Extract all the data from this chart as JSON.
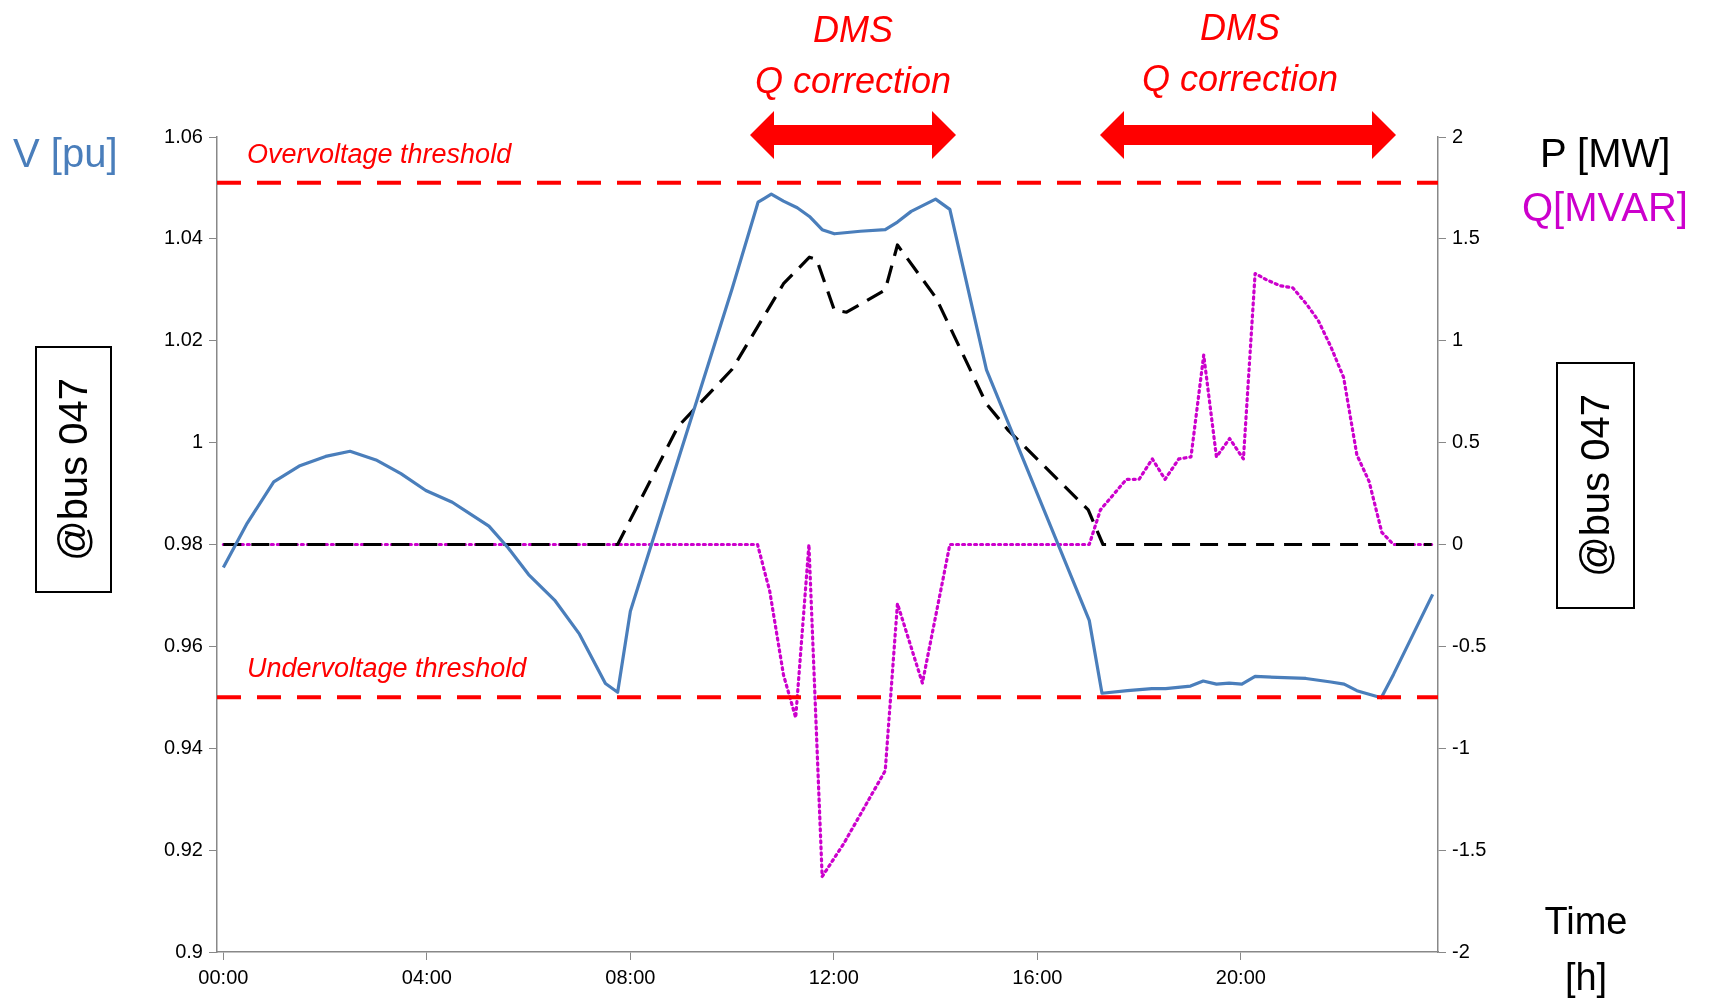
{
  "chart_data": {
    "type": "line",
    "xlabel": "Time\n[h]",
    "legend": false,
    "marker": "none",
    "xlim": [
      -0.125,
      23.875
    ],
    "xticks": [
      {
        "value": 0,
        "label": "00:00"
      },
      {
        "value": 4,
        "label": "04:00"
      },
      {
        "value": 8,
        "label": "08:00"
      },
      {
        "value": 12,
        "label": "12:00"
      },
      {
        "value": 16,
        "label": "16:00"
      },
      {
        "value": 20,
        "label": "20:00"
      }
    ],
    "ylim": [
      0.9,
      1.06
    ],
    "yticks": [
      0.9,
      0.92,
      0.94,
      0.96,
      0.98,
      1,
      1.02,
      1.04,
      1.06
    ],
    "y2lim": [
      -2,
      2
    ],
    "y2ticks": [
      -2,
      -1.5,
      -1,
      -0.5,
      0,
      0.5,
      1,
      1.5,
      2
    ],
    "series": [
      {
        "name": "V [pu]",
        "color": "#4a7ebb",
        "line_style": "solid",
        "x": [
          0,
          0.47,
          0.99,
          1.49,
          2.01,
          2.49,
          3.0,
          3.49,
          3.98,
          4.5,
          5.22,
          5.6,
          6.0,
          6.51,
          7.0,
          7.51,
          7.75,
          8.0,
          10.0,
          10.51,
          10.77,
          11.01,
          11.28,
          11.52,
          11.77,
          12.01,
          12.52,
          13.01,
          13.25,
          13.52,
          14.0,
          14.28,
          15.0,
          17.02,
          17.27,
          17.77,
          18.25,
          18.52,
          19.01,
          19.26,
          19.52,
          19.77,
          20.02,
          20.28,
          21.28,
          21.77,
          22.03,
          22.28,
          22.76,
          23.0,
          23.77
        ],
        "values": [
          0.9755,
          0.9842,
          0.9923,
          0.9954,
          0.9973,
          0.9983,
          0.9966,
          0.9939,
          0.9906,
          0.9883,
          0.9836,
          0.9793,
          0.9741,
          0.9691,
          0.9624,
          0.9527,
          0.951,
          0.9669,
          1.0302,
          1.0472,
          1.0488,
          1.0474,
          1.0461,
          1.0444,
          1.0418,
          1.041,
          1.0415,
          1.0418,
          1.0433,
          1.0454,
          1.0478,
          1.0458,
          1.0143,
          0.9651,
          0.9508,
          0.9513,
          0.9517,
          0.9517,
          0.9522,
          0.9532,
          0.9526,
          0.9528,
          0.9526,
          0.9541,
          0.9537,
          0.953,
          0.9526,
          0.9513,
          0.9499,
          0.9545,
          0.9702
        ]
      },
      {
        "name": "P [MW]",
        "color": "#000000",
        "line_style": "dashed",
        "axis": "y2",
        "x": [
          0,
          7.75,
          8.94,
          10.0,
          11.01,
          11.52,
          11.66,
          12.01,
          12.25,
          13.01,
          13.25,
          14.01,
          15.0,
          15.43,
          17.0,
          17.29,
          23.75
        ],
        "values": [
          0,
          0,
          0.58,
          0.86,
          1.28,
          1.41,
          1.4,
          1.15,
          1.14,
          1.25,
          1.47,
          1.21,
          0.69,
          0.56,
          0.17,
          0,
          0
        ]
      },
      {
        "name": "Q[MVAR]",
        "color": "#cc00cc",
        "line_style": "dotted",
        "axis": "y2",
        "x": [
          0,
          10.5,
          10.74,
          11.01,
          11.25,
          11.51,
          11.77,
          12.19,
          13.01,
          13.25,
          13.74,
          14.28,
          17.02,
          17.24,
          17.75,
          18.0,
          18.26,
          18.51,
          18.78,
          19.02,
          19.27,
          19.52,
          19.78,
          20.05,
          20.28,
          20.5,
          20.77,
          21.02,
          21.29,
          21.52,
          21.77,
          22.02,
          22.28,
          22.52,
          22.77,
          23.0,
          23.75
        ],
        "values": [
          0,
          0,
          -0.23,
          -0.64,
          -0.85,
          0,
          -1.63,
          -1.47,
          -1.11,
          -0.29,
          -0.68,
          0,
          0,
          0.17,
          0.32,
          0.32,
          0.42,
          0.32,
          0.42,
          0.43,
          0.93,
          0.43,
          0.52,
          0.42,
          1.33,
          1.3,
          1.27,
          1.26,
          1.18,
          1.1,
          0.97,
          0.82,
          0.44,
          0.31,
          0.06,
          0,
          0
        ]
      }
    ],
    "ref_lines": [
      {
        "axis": "y",
        "value": 1.051,
        "label": "Overvoltage threshold",
        "color": "#ff0000",
        "line_style": "dashed"
      },
      {
        "axis": "y",
        "value": 0.95,
        "label": "Undervoltage threshold",
        "color": "#ff0000",
        "line_style": "dashed"
      }
    ],
    "annotations": [
      "DMS\nQ correction",
      "DMS\nQ correction",
      "@bus 047",
      "@bus 047"
    ]
  }
}
